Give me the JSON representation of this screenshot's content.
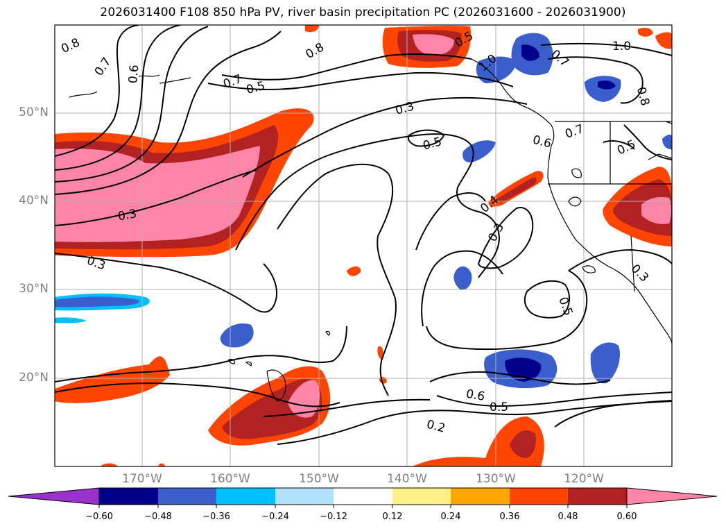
{
  "title": "2026031400 F108 850 hPa PV, river basin precipitation PC (2026031600 - 2026031900)",
  "lat_labels": [
    {
      "text": "50°N",
      "lat": 50
    },
    {
      "text": "40°N",
      "lat": 40
    },
    {
      "text": "30°N",
      "lat": 30
    },
    {
      "text": "20°N",
      "lat": 20
    }
  ],
  "lon_labels": [
    {
      "text": "170°W",
      "lon": -170
    },
    {
      "text": "160°W",
      "lon": -160
    },
    {
      "text": "150°W",
      "lon": -150
    },
    {
      "text": "140°W",
      "lon": -140
    },
    {
      "text": "130°W",
      "lon": -130
    },
    {
      "text": "120°W",
      "lon": -120
    }
  ],
  "colorbar": {
    "ticks": [
      "−0.60",
      "−0.48",
      "−0.36",
      "−0.24",
      "−0.12",
      "0.12",
      "0.24",
      "0.36",
      "0.48",
      "0.60"
    ],
    "colors": [
      "#9932cc",
      "#00008b",
      "#3a5fcd",
      "#00bfff",
      "#b0e2ff",
      "#ffffff",
      "#fff08a",
      "#ffa500",
      "#ff4500",
      "#b22222",
      "#ff85a8"
    ]
  },
  "contour_labels": [
    "0.8",
    "0.7",
    "0.6",
    "0.7",
    "0.5",
    "0.8",
    "1.0",
    "0.3",
    "0.3",
    "0.3",
    "0.5",
    "0.6",
    "0.7",
    "0.5",
    "0.4",
    "0.3",
    "0.5",
    "0.6",
    "0.5",
    "0.2",
    "1.0",
    "0.7",
    "0.8",
    "0.5",
    "0.3"
  ],
  "colors": {
    "grid": "#b0b0b0",
    "contour": "#000000",
    "axis_label": "#808080"
  }
}
